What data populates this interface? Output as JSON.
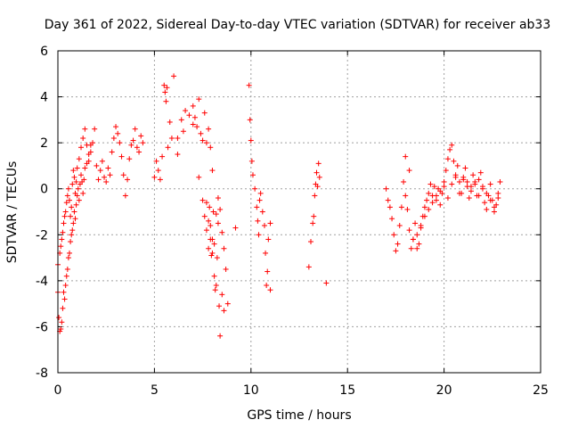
{
  "chart_data": {
    "type": "scatter",
    "title": "Day 361 of 2022, Sidereal Day-to-day VTEC variation (SDTVAR) for receiver ab33",
    "xlabel": "GPS time / hours",
    "ylabel": "SDTVAR / TECUs",
    "xlim": [
      0,
      25
    ],
    "ylim": [
      -8,
      6
    ],
    "xticks": [
      "0",
      "5",
      "10",
      "15",
      "20",
      "25"
    ],
    "yticks": [
      "-8",
      "-6",
      "-4",
      "-2",
      "0",
      "2",
      "4",
      "6"
    ],
    "grid": true,
    "marker": "+",
    "series_color": "#ff0000",
    "series": [
      {
        "name": "SDTVAR",
        "x": [
          0.0,
          0.1,
          0.15,
          0.2,
          0.25,
          0.3,
          0.35,
          0.4,
          0.45,
          0.5,
          0.55,
          0.6,
          0.65,
          0.7,
          0.75,
          0.8,
          0.85,
          0.9,
          0.95,
          1.0,
          1.1,
          1.2,
          1.3,
          1.4,
          1.5,
          1.6,
          1.7,
          1.8,
          1.9,
          2.0,
          2.1,
          2.2,
          2.3,
          2.4,
          2.5,
          2.6,
          2.7,
          2.8,
          2.9,
          3.0,
          3.1,
          3.2,
          3.3,
          3.4,
          3.5,
          3.6,
          3.7,
          3.8,
          3.9,
          4.0,
          4.1,
          4.2,
          4.3,
          4.4,
          0.0,
          0.05,
          0.1,
          0.15,
          0.2,
          0.25,
          0.3,
          0.35,
          0.4,
          0.45,
          0.5,
          0.55,
          0.6,
          0.65,
          0.7,
          0.75,
          0.8,
          0.85,
          0.9,
          0.95,
          1.0,
          1.05,
          1.1,
          1.15,
          1.2,
          1.25,
          1.3,
          1.35,
          1.4,
          1.5,
          1.6,
          1.7,
          5.0,
          5.1,
          5.2,
          5.3,
          5.4,
          5.5,
          5.55,
          5.6,
          5.65,
          5.7,
          5.8,
          5.9,
          6.0,
          6.2,
          6.4,
          6.6,
          6.8,
          7.0,
          7.1,
          7.2,
          7.3,
          7.4,
          7.5,
          7.6,
          7.7,
          7.8,
          7.9,
          8.0,
          6.2,
          6.5,
          7.0,
          7.3,
          7.5,
          7.6,
          7.7,
          7.8,
          7.85,
          7.9,
          7.95,
          8.0,
          8.05,
          8.1,
          8.15,
          8.2,
          8.25,
          8.3,
          8.35,
          8.4,
          8.5,
          8.6,
          8.7,
          8.8,
          9.2,
          7.7,
          7.8,
          7.9,
          8.0,
          8.1,
          8.2,
          8.3,
          8.4,
          8.5,
          8.6,
          9.9,
          9.95,
          10.0,
          10.05,
          10.1,
          10.2,
          10.3,
          10.35,
          10.4,
          10.45,
          10.5,
          10.6,
          10.7,
          10.75,
          10.8,
          10.85,
          10.9,
          11.0,
          11.0,
          13.0,
          13.1,
          13.2,
          13.25,
          13.3,
          13.35,
          13.4,
          13.45,
          13.5,
          13.55,
          13.9,
          17.0,
          17.1,
          17.2,
          17.3,
          17.4,
          17.5,
          17.6,
          17.7,
          17.8,
          17.9,
          18.0,
          18.1,
          18.2,
          18.3,
          18.4,
          18.5,
          18.6,
          18.7,
          18.8,
          18.9,
          19.0,
          19.1,
          19.2,
          19.3,
          19.4,
          19.5,
          19.6,
          19.7,
          19.8,
          19.9,
          20.0,
          20.1,
          20.2,
          20.3,
          20.4,
          20.5,
          20.6,
          20.7,
          20.8,
          20.9,
          21.0,
          21.1,
          21.2,
          21.3,
          21.4,
          21.5,
          21.6,
          21.7,
          21.8,
          21.9,
          22.0,
          22.1,
          22.2,
          22.3,
          22.4,
          22.5,
          22.6,
          22.7,
          22.8,
          22.9,
          18.0,
          18.2,
          18.4,
          18.6,
          18.8,
          19.0,
          19.2,
          19.4,
          19.6,
          19.8,
          20.0,
          20.2,
          20.4,
          20.6,
          20.8,
          21.0,
          21.2,
          21.4,
          21.6,
          21.8,
          22.0,
          22.2,
          22.4,
          22.6,
          22.8
        ],
        "y": [
          -3.3,
          -2.8,
          -2.5,
          -2.2,
          -1.9,
          -1.5,
          -1.2,
          -1.0,
          -0.6,
          -0.3,
          0.0,
          -0.5,
          -1.2,
          -0.8,
          0.2,
          0.8,
          0.5,
          -0.2,
          0.3,
          0.9,
          1.3,
          1.8,
          2.2,
          2.6,
          1.9,
          1.2,
          1.6,
          2.0,
          2.6,
          1.0,
          0.4,
          0.8,
          1.2,
          0.5,
          0.3,
          0.9,
          0.6,
          1.6,
          2.2,
          2.7,
          2.4,
          2.0,
          1.4,
          0.6,
          -0.3,
          0.4,
          1.3,
          1.9,
          2.1,
          2.6,
          1.8,
          1.6,
          2.3,
          2.0,
          -4.5,
          -5.6,
          -6.2,
          -6.1,
          -5.8,
          -5.2,
          -4.5,
          -4.8,
          -4.2,
          -3.8,
          -3.5,
          -3.0,
          -2.8,
          -2.3,
          -2.0,
          -1.8,
          -1.5,
          -1.0,
          -1.3,
          -0.7,
          -0.3,
          0.0,
          -0.5,
          0.2,
          0.6,
          0.3,
          -0.2,
          0.4,
          0.9,
          1.1,
          1.5,
          1.9,
          0.5,
          1.2,
          0.8,
          0.4,
          1.4,
          4.5,
          4.2,
          3.8,
          4.4,
          1.8,
          2.9,
          2.2,
          4.9,
          2.2,
          3.0,
          3.4,
          3.2,
          3.6,
          3.1,
          2.7,
          3.9,
          2.4,
          2.1,
          3.3,
          2.0,
          2.6,
          1.8,
          0.8,
          1.5,
          2.5,
          2.8,
          0.5,
          -0.5,
          -1.2,
          -1.8,
          -2.6,
          -0.8,
          -1.6,
          -2.9,
          -2.2,
          -1.0,
          -3.8,
          -4.4,
          -4.2,
          -3.0,
          -1.5,
          -5.1,
          -6.4,
          -4.6,
          -5.3,
          -3.5,
          -5.0,
          -1.7,
          -0.6,
          -1.4,
          -2.2,
          -2.8,
          -2.4,
          -1.1,
          -0.4,
          -0.9,
          -1.9,
          -2.6,
          4.5,
          3.0,
          2.1,
          1.2,
          0.6,
          0.0,
          -0.8,
          -1.4,
          -2.0,
          -0.5,
          -0.2,
          -1.0,
          -1.6,
          -2.8,
          -4.2,
          -3.6,
          -2.2,
          -1.5,
          -4.4,
          -3.4,
          -2.3,
          -1.5,
          -1.2,
          -0.3,
          0.2,
          0.7,
          0.1,
          1.1,
          0.5,
          -4.1,
          0.0,
          -0.5,
          -0.8,
          -1.3,
          -2.0,
          -2.7,
          -2.4,
          -1.6,
          -0.8,
          0.3,
          -0.3,
          -0.9,
          -1.8,
          -2.6,
          -2.2,
          -1.5,
          -2.0,
          -2.4,
          -1.6,
          -1.2,
          -0.8,
          -0.5,
          -0.2,
          0.2,
          -0.3,
          0.1,
          -0.5,
          0.0,
          -0.7,
          -0.2,
          0.3,
          0.8,
          1.3,
          1.7,
          1.9,
          1.2,
          0.6,
          1.0,
          0.3,
          -0.2,
          0.5,
          0.9,
          0.3,
          -0.4,
          0.1,
          0.6,
          0.2,
          -0.3,
          0.4,
          0.7,
          0.1,
          -0.6,
          -0.9,
          -0.3,
          0.2,
          -0.5,
          -1.0,
          -0.7,
          -0.2,
          0.3,
          1.4,
          0.8,
          -2.2,
          -2.6,
          -1.7,
          -1.2,
          -0.9,
          -0.6,
          -0.3,
          -0.1,
          0.1,
          -0.4,
          0.2,
          0.5,
          -0.2,
          0.4,
          0.1,
          -0.1,
          0.3,
          -0.3,
          0.0,
          -0.2,
          -0.5,
          -0.8,
          -0.4
        ]
      }
    ]
  }
}
